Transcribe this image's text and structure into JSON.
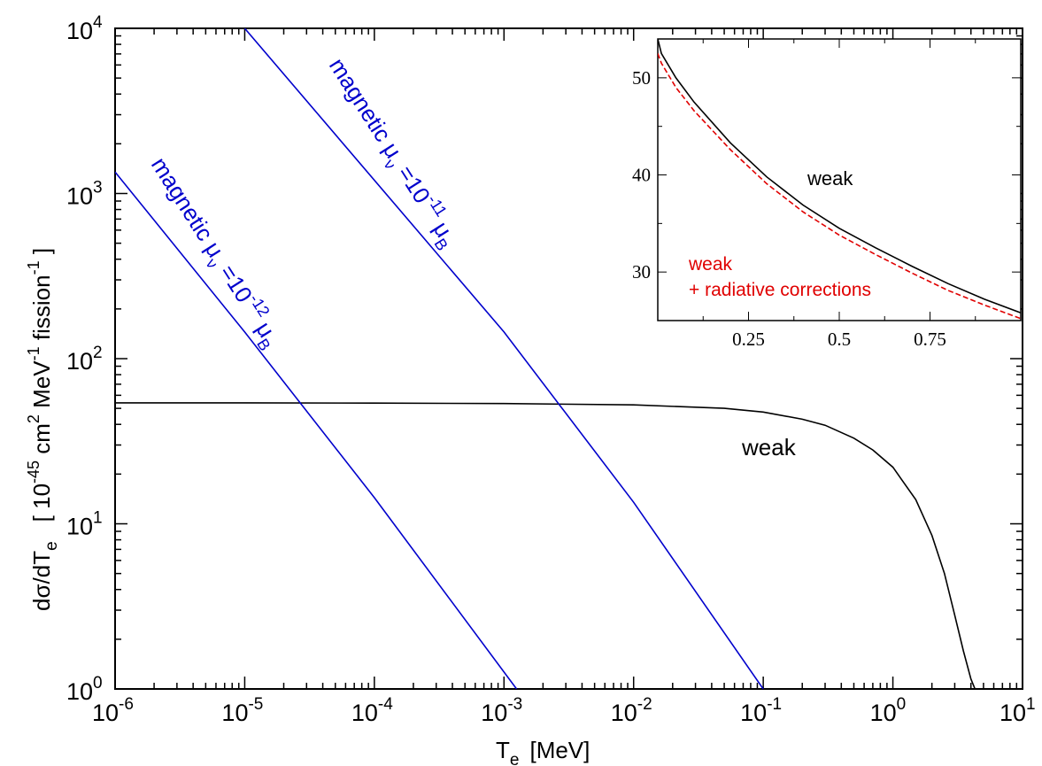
{
  "chart_data": [
    {
      "type": "line",
      "xscale": "log",
      "yscale": "log",
      "xlim": [
        1e-06,
        10
      ],
      "ylim": [
        1,
        10000
      ],
      "xlabel": {
        "main": "T",
        "sub": "e",
        "unit": "[MeV]"
      },
      "ylabel": {
        "lhs_main": "dσ/dT",
        "lhs_sub": "e",
        "open": "[ ",
        "exp10": "10",
        "exp10_sup": "-45",
        "cm": " cm",
        "cm_sup": "2",
        "mev": " MeV",
        "mev_sup": "-1",
        "fission": " fission",
        "fission_sup": "-1",
        "close": " ]"
      },
      "xticks": [
        {
          "base": "10",
          "exp": "-6"
        },
        {
          "base": "10",
          "exp": "-5"
        },
        {
          "base": "10",
          "exp": "-4"
        },
        {
          "base": "10",
          "exp": "-3"
        },
        {
          "base": "10",
          "exp": "-2"
        },
        {
          "base": "10",
          "exp": "-1"
        },
        {
          "base": "10",
          "exp": "0"
        },
        {
          "base": "10",
          "exp": "1"
        }
      ],
      "yticks": [
        {
          "base": "10",
          "exp": "0"
        },
        {
          "base": "10",
          "exp": "1"
        },
        {
          "base": "10",
          "exp": "2"
        },
        {
          "base": "10",
          "exp": "3"
        },
        {
          "base": "10",
          "exp": "4"
        }
      ],
      "series": [
        {
          "name": "weak",
          "color": "#000000",
          "points": [
            [
              1e-06,
              54
            ],
            [
              1e-05,
              54
            ],
            [
              0.0001,
              53.8
            ],
            [
              0.001,
              53.5
            ],
            [
              0.01,
              52.5
            ],
            [
              0.05,
              50
            ],
            [
              0.1,
              47.5
            ],
            [
              0.2,
              43
            ],
            [
              0.3,
              39.5
            ],
            [
              0.5,
              33
            ],
            [
              0.7,
              28
            ],
            [
              1.0,
              22
            ],
            [
              1.5,
              14
            ],
            [
              2.0,
              8.5
            ],
            [
              2.5,
              5
            ],
            [
              3.0,
              2.8
            ],
            [
              3.5,
              1.7
            ],
            [
              4.0,
              1.15
            ],
            [
              4.3,
              1.0
            ]
          ]
        },
        {
          "name": "magnetic-1e-11",
          "color": "#0000cc",
          "points": [
            [
              1e-05,
              10000
            ],
            [
              0.001,
              145
            ],
            [
              0.01,
              13.5
            ],
            [
              0.1,
              1.0
            ]
          ]
        },
        {
          "name": "magnetic-1e-12",
          "color": "#0000cc",
          "points": [
            [
              1e-06,
              1350
            ],
            [
              1e-05,
              145
            ],
            [
              0.0001,
              14.4
            ],
            [
              0.00125,
              1.0
            ]
          ]
        }
      ],
      "annotations": [
        {
          "id": "weak",
          "text": "weak",
          "color": "#000000"
        },
        {
          "id": "mag11",
          "prefix": "magnetic μ",
          "sub": "ν",
          "eq": " =10",
          "sup": "-11",
          "unit": "μ",
          "unit_sub": "B",
          "color": "#0000cc"
        },
        {
          "id": "mag12",
          "prefix": "magnetic μ",
          "sub": "ν",
          "eq": " =10",
          "sup": "-12",
          "unit": "μ",
          "unit_sub": "B",
          "color": "#0000cc"
        }
      ]
    },
    {
      "type": "line",
      "xlim": [
        0,
        1
      ],
      "ylim": [
        25,
        54
      ],
      "xticks": [
        "0.25",
        "0.5",
        "0.75"
      ],
      "yticks": [
        "30",
        "40",
        "50"
      ],
      "series": [
        {
          "name": "weak",
          "color": "#000000",
          "style": "solid",
          "points": [
            [
              0.0,
              54
            ],
            [
              0.01,
              52.5
            ],
            [
              0.05,
              50
            ],
            [
              0.1,
              47.5
            ],
            [
              0.2,
              43.3
            ],
            [
              0.3,
              39.8
            ],
            [
              0.4,
              36.9
            ],
            [
              0.5,
              34.5
            ],
            [
              0.6,
              32.5
            ],
            [
              0.7,
              30.6
            ],
            [
              0.8,
              28.8
            ],
            [
              0.9,
              27.2
            ],
            [
              1.0,
              25.8
            ]
          ]
        },
        {
          "name": "weak + radiative corrections",
          "color": "#e00000",
          "style": "dashed",
          "points": [
            [
              0.0,
              52.5
            ],
            [
              0.01,
              51.5
            ],
            [
              0.05,
              49
            ],
            [
              0.1,
              46.6
            ],
            [
              0.2,
              42.6
            ],
            [
              0.3,
              39.1
            ],
            [
              0.4,
              36.2
            ],
            [
              0.5,
              33.8
            ],
            [
              0.6,
              31.8
            ],
            [
              0.7,
              29.9
            ],
            [
              0.8,
              28.1
            ],
            [
              0.9,
              26.6
            ],
            [
              1.0,
              25.2
            ]
          ]
        }
      ],
      "annotations": [
        {
          "id": "weak",
          "text": "weak",
          "color": "#000000"
        },
        {
          "id": "rad1",
          "text": "weak",
          "color": "#e00000"
        },
        {
          "id": "rad2",
          "text": "+ radiative corrections",
          "color": "#e00000"
        }
      ]
    }
  ]
}
